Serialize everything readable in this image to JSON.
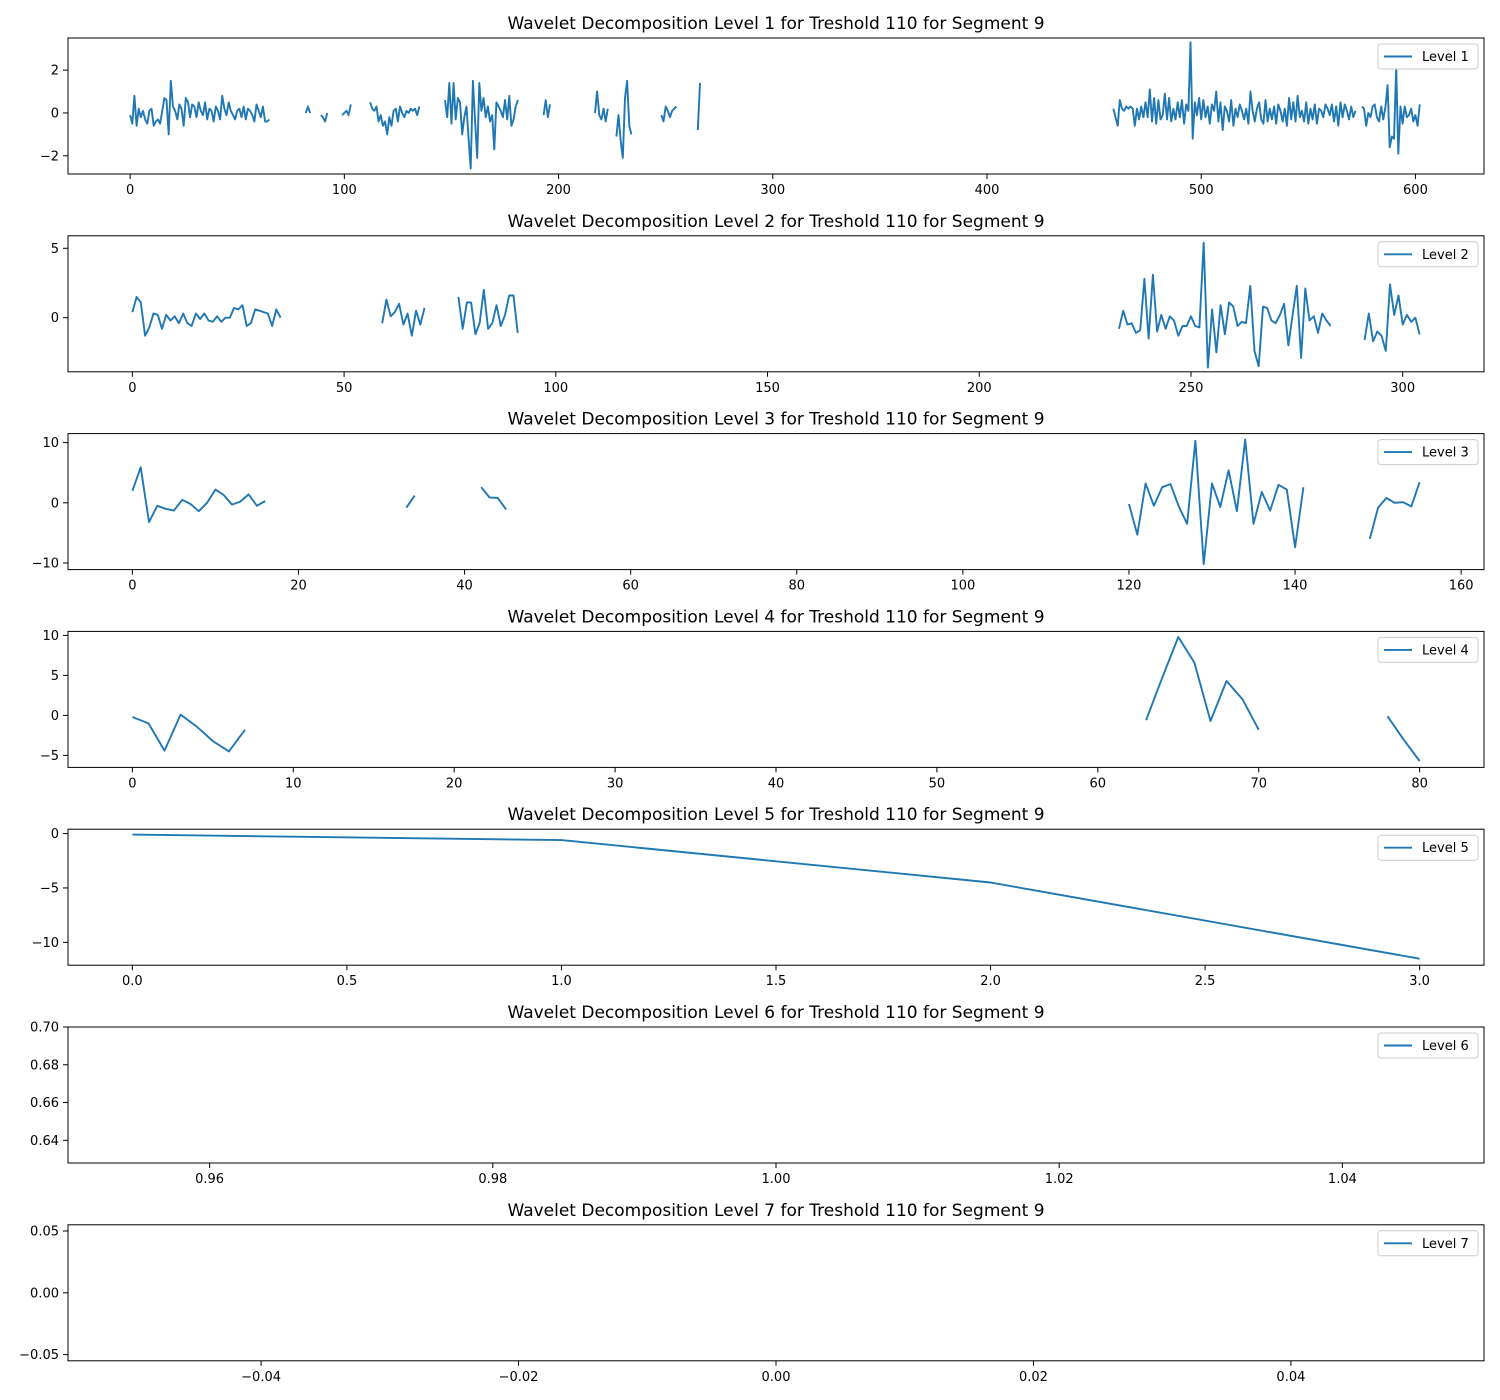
{
  "colors": {
    "line": "#1f77b4",
    "axis": "#000000",
    "legend_border": "#cccccc"
  },
  "chart_data": [
    {
      "type": "line",
      "title": "Wavelet Decomposition Level 1 for Treshold 110 for Segment 9",
      "xlabel": "",
      "ylabel": "",
      "xlim": [
        -29,
        632
      ],
      "ylim": [
        -2.85,
        3.5
      ],
      "xticks": [
        0,
        100,
        200,
        300,
        400,
        500,
        600
      ],
      "xtick_labels": [
        "0",
        "100",
        "200",
        "300",
        "400",
        "500",
        "600"
      ],
      "yticks": [
        -2,
        0,
        2
      ],
      "ytick_labels": [
        "−2",
        "0",
        "2"
      ],
      "legend": "top-right",
      "series": [
        {
          "name": "Level 1",
          "segments": [
            {
              "x0": 0,
              "y": [
                -0.1,
                -0.5,
                0.8,
                -0.6,
                0.2,
                -0.2,
                0.1,
                -0.3,
                -0.5,
                0.1,
                0.2,
                -0.6,
                -0.4,
                -0.3,
                -0.5,
                0.1,
                0.7,
                0.6,
                -1.0,
                1.5,
                0.3,
                0.1,
                -0.3,
                0.4,
                0.2,
                -0.6,
                0.7,
                0.5,
                -0.2,
                0.4,
                0.3,
                -0.2,
                0.5,
                0.1,
                -0.1,
                0.5,
                -0.3,
                0.2,
                0.1,
                -0.4,
                0.3,
                0.1,
                -0.3,
                0.8,
                0.2,
                -0.1,
                0.5,
                0.1,
                -0.1,
                -0.3,
                0.1,
                0.2,
                -0.2,
                0.3,
                -0.3,
                0.2,
                0.1,
                -0.1,
                -0.4,
                0.4,
                0.1,
                -0.2,
                0.3,
                -0.4,
                -0.4,
                -0.3
              ]
            },
            {
              "x0": 82,
              "y": [
                0.0,
                0.3,
                0.0
              ]
            },
            {
              "x0": 89,
              "y": [
                -0.1,
                -0.2,
                -0.4,
                0.0
              ]
            },
            {
              "x0": 99,
              "y": [
                -0.1,
                0.0,
                0.1,
                -0.1,
                0.4
              ]
            },
            {
              "x0": 112,
              "y": [
                0.5,
                0.2,
                0.1,
                0.3,
                -0.4,
                -0.1,
                -0.6,
                -0.4,
                -1.0,
                -0.2,
                -0.6,
                0.1,
                0.2,
                -0.4,
                0.3,
                0.0,
                -0.2,
                0.1,
                0.0,
                0.2,
                0.1,
                0.2,
                -0.1,
                0.3
              ]
            },
            {
              "x0": 147,
              "y": [
                0.6,
                -0.2,
                1.4,
                -0.5,
                1.4,
                -0.3,
                0.7,
                0.5,
                -1.0,
                -0.2,
                0.3,
                -1.2,
                -2.6,
                1.5,
                -0.3,
                -2.1,
                1.4,
                0.1,
                0.7,
                -0.2,
                0.3,
                -0.4,
                -0.1,
                -1.7,
                0.5,
                0.3,
                0.1,
                -0.2,
                0.6,
                -0.3,
                0.8,
                -0.6,
                -0.3,
                0.3,
                0.6
              ]
            },
            {
              "x0": 193,
              "y": [
                -0.1,
                0.6,
                -0.2,
                0.4
              ]
            },
            {
              "x0": 217,
              "y": [
                0.0,
                1.0,
                -0.1,
                -0.3,
                0.2,
                -0.4,
                0.2
              ]
            },
            {
              "x0": 227,
              "y": [
                -1.1,
                -0.1,
                -1.3,
                -2.1,
                0.7,
                1.5,
                -0.6,
                -1.0
              ]
            },
            {
              "x0": 248,
              "y": [
                -0.1,
                -0.4,
                0.3,
                0.1,
                -0.2,
                0.1,
                0.2,
                0.3
              ]
            },
            {
              "x0": 265,
              "y": [
                -0.8,
                1.4
              ]
            },
            {
              "x0": 459,
              "y": [
                0.2,
                -0.2,
                -0.6,
                0.6,
                0.2,
                0.1,
                0.3,
                0.2,
                0.3,
                0.2,
                -0.6,
                0.2,
                -0.3,
                0.3,
                -0.2,
                0.5,
                -0.2,
                1.1,
                -0.4,
                0.7,
                -0.5,
                0.6,
                -0.3,
                -0.1,
                0.9,
                -0.3,
                0.7,
                -0.4,
                0.2,
                -0.3,
                0.5,
                -0.2,
                0.6,
                -0.5,
                0.4,
                0.1,
                3.3,
                -1.2,
                0.5,
                -0.1,
                0.7,
                -0.3,
                0.6,
                -0.2,
                0.3,
                -0.5,
                0.4,
                0.1,
                1.0,
                -0.4,
                0.5,
                -0.8,
                0.3,
                0.1,
                -0.4,
                0.6,
                -0.6,
                0.2,
                -0.2,
                0.4,
                0.1,
                -0.3,
                0.2,
                -0.5,
                1.0,
                0.1,
                -0.4,
                0.2,
                0.5,
                -0.3,
                -0.5,
                0.6,
                -0.4,
                0.2,
                -0.3,
                0.3,
                -0.5,
                0.4,
                0.1,
                -0.4,
                0.2,
                -0.6,
                0.7,
                -0.3,
                0.5,
                -0.4,
                0.8,
                -0.2,
                0.1,
                -0.4,
                0.5,
                -0.5,
                0.2,
                -0.3,
                0.4,
                -0.5,
                0.2,
                0.1,
                -0.2,
                0.4,
                0.2,
                -0.1,
                0.4,
                -0.4,
                0.3,
                -0.6,
                0.5,
                -0.2,
                0.4,
                0.1,
                -0.3,
                0.3,
                -0.2,
                0.1
              ]
            },
            {
              "x0": 575,
              "y": [
                0.3,
                0.2,
                -0.6,
                0.0,
                -0.2,
                0.3,
                0.4,
                -0.2,
                -0.4,
                0.3,
                -0.3,
                0.3,
                1.3,
                -1.6,
                -1.1,
                -1.2,
                2.1,
                -1.9,
                0.3,
                -0.5,
                0.3,
                -0.2,
                -0.1,
                0.2,
                -0.4,
                -0.1,
                -0.6,
                0.4
              ]
            }
          ]
        }
      ]
    },
    {
      "type": "line",
      "title": "Wavelet Decomposition Level 2 for Treshold 110 for Segment 9",
      "xlabel": "",
      "ylabel": "",
      "xlim": [
        -15.2,
        319.2
      ],
      "ylim": [
        -3.9,
        5.9
      ],
      "xticks": [
        0,
        50,
        100,
        150,
        200,
        250,
        300
      ],
      "xtick_labels": [
        "0",
        "50",
        "100",
        "150",
        "200",
        "250",
        "300"
      ],
      "yticks": [
        0,
        5
      ],
      "ytick_labels": [
        "0",
        "5"
      ],
      "legend": "top-right",
      "series": [
        {
          "name": "Level 2",
          "segments": [
            {
              "x0": 0,
              "y": [
                0.4,
                1.5,
                1.1,
                -1.3,
                -0.7,
                0.3,
                0.2,
                -0.8,
                0.2,
                -0.2,
                0.1,
                -0.4,
                0.3,
                -0.4,
                -0.6,
                0.3,
                -0.1,
                0.3,
                -0.2,
                -0.3,
                0.1,
                -0.3,
                0.0,
                0.0,
                0.7,
                0.6,
                0.9,
                -0.6,
                -0.4,
                0.6,
                0.5,
                0.4,
                0.3,
                -0.6,
                0.6,
                0.0
              ]
            },
            {
              "x0": 59,
              "y": [
                -0.4,
                1.3,
                0.1,
                0.4,
                1.0,
                -0.5,
                0.3,
                -1.3,
                0.5,
                -0.5,
                0.7
              ]
            },
            {
              "x0": 77,
              "y": [
                1.5,
                -0.8,
                1.1,
                1.1,
                -1.2,
                -0.4,
                2.0,
                -0.8,
                -0.4,
                0.9,
                -0.6,
                0.2,
                1.6,
                1.6,
                -1.1
              ]
            },
            {
              "x0": 233,
              "y": [
                -0.8,
                0.5,
                -0.5,
                -0.4,
                -1.1,
                -0.9,
                2.8,
                -1.5,
                3.1,
                -1.0,
                0.2,
                -0.8,
                0.1,
                -0.2,
                -1.3,
                -0.6,
                -0.6,
                0.1,
                -0.6,
                -0.7,
                5.4,
                -3.6,
                0.6,
                -2.5,
                0.9,
                -1.2,
                1.1,
                0.8,
                -0.6,
                -0.3,
                -0.4,
                2.3,
                -2.4,
                -3.5,
                0.8,
                0.7,
                -0.2,
                -0.4,
                0.2,
                1.0,
                -2.0,
                0.2,
                2.3,
                -2.9,
                2.1,
                -0.2,
                0.1,
                -1.1,
                0.3,
                -0.2,
                -0.6
              ]
            },
            {
              "x0": 291,
              "y": [
                -1.6,
                0.3,
                -1.7,
                -1.0,
                -1.3,
                -2.4,
                2.4,
                0.2,
                1.6,
                -0.5,
                0.2,
                -0.3,
                0.0,
                -1.2
              ]
            }
          ]
        }
      ]
    },
    {
      "type": "line",
      "title": "Wavelet Decomposition Level 3 for Treshold 110 for Segment 9",
      "xlabel": "",
      "ylabel": "",
      "xlim": [
        -7.75,
        162.75
      ],
      "ylim": [
        -11.1,
        11.5
      ],
      "xticks": [
        0,
        20,
        40,
        60,
        80,
        100,
        120,
        140,
        160
      ],
      "xtick_labels": [
        "0",
        "20",
        "40",
        "60",
        "80",
        "100",
        "120",
        "140",
        "160"
      ],
      "yticks": [
        -10,
        0,
        10
      ],
      "ytick_labels": [
        "−10",
        "0",
        "10"
      ],
      "legend": "top-right",
      "series": [
        {
          "name": "Level 3",
          "segments": [
            {
              "x0": 0,
              "y": [
                2.0,
                5.9,
                -3.2,
                -0.5,
                -1.0,
                -1.3,
                0.5,
                -0.2,
                -1.4,
                0.0,
                2.2,
                1.3,
                -0.3,
                0.2,
                1.4,
                -0.5,
                0.3
              ]
            },
            {
              "x0": 33,
              "y": [
                -0.8,
                1.2
              ]
            },
            {
              "x0": 42,
              "y": [
                2.6,
                0.9,
                0.8,
                -1.1
              ]
            },
            {
              "x0": 120,
              "y": [
                -0.2,
                -5.3,
                3.2,
                -0.5,
                2.6,
                3.1,
                -0.6,
                -3.5,
                10.3,
                -10.2,
                3.2,
                -0.7,
                5.4,
                -1.4,
                10.5,
                -3.5,
                1.8,
                -1.3,
                3.0,
                2.2,
                -7.4,
                2.6
              ]
            },
            {
              "x0": 149,
              "y": [
                -6.0,
                -0.8,
                0.8,
                0.0,
                0.1,
                -0.6,
                3.4
              ]
            }
          ]
        }
      ]
    },
    {
      "type": "line",
      "title": "Wavelet Decomposition Level 4 for Treshold 110 for Segment 9",
      "xlabel": "",
      "ylabel": "",
      "xlim": [
        -4,
        84
      ],
      "ylim": [
        -6.5,
        10.5
      ],
      "xticks": [
        0,
        10,
        20,
        30,
        40,
        50,
        60,
        70,
        80
      ],
      "xtick_labels": [
        "0",
        "10",
        "20",
        "30",
        "40",
        "50",
        "60",
        "70",
        "80"
      ],
      "yticks": [
        -5,
        0,
        5,
        10
      ],
      "ytick_labels": [
        "−5",
        "0",
        "5",
        "10"
      ],
      "legend": "top-right",
      "series": [
        {
          "name": "Level 4",
          "segments": [
            {
              "x0": 0,
              "y": [
                -0.2,
                -1.0,
                -4.4,
                0.1,
                -1.4,
                -3.2,
                -4.5,
                -1.8
              ]
            },
            {
              "x0": 63,
              "y": [
                -0.6,
                4.7,
                9.8,
                6.6,
                -0.7,
                4.3,
                2.0,
                -1.8
              ]
            },
            {
              "x0": 78,
              "y": [
                -0.1,
                -3.0,
                -5.7
              ]
            }
          ]
        }
      ]
    },
    {
      "type": "line",
      "title": "Wavelet Decomposition Level 5 for Treshold 110 for Segment 9",
      "xlabel": "",
      "ylabel": "",
      "xlim": [
        -0.15,
        3.15
      ],
      "ylim": [
        -12.1,
        0.4
      ],
      "xticks": [
        0,
        0.5,
        1,
        1.5,
        2,
        2.5,
        3
      ],
      "xtick_labels": [
        "0.0",
        "0.5",
        "1.0",
        "1.5",
        "2.0",
        "2.5",
        "3.0"
      ],
      "yticks": [
        -10,
        -5,
        0
      ],
      "ytick_labels": [
        "−10",
        "−5",
        "0"
      ],
      "legend": "top-right",
      "series": [
        {
          "name": "Level 5",
          "segments": [
            {
              "x0": 0,
              "y": [
                -0.1,
                -0.6,
                -4.5,
                -11.5
              ]
            }
          ]
        }
      ]
    },
    {
      "type": "line",
      "title": "Wavelet Decomposition Level 6 for Treshold 110 for Segment 9",
      "xlabel": "",
      "ylabel": "",
      "xlim": [
        0.95,
        1.05
      ],
      "ylim": [
        0.628,
        0.7
      ],
      "xticks": [
        0.96,
        0.98,
        1.0,
        1.02,
        1.04
      ],
      "xtick_labels": [
        "0.96",
        "0.98",
        "1.00",
        "1.02",
        "1.04"
      ],
      "yticks": [
        0.64,
        0.66,
        0.68,
        0.7
      ],
      "ytick_labels": [
        "0.64",
        "0.66",
        "0.68",
        "0.70"
      ],
      "legend": "top-right",
      "series": [
        {
          "name": "Level 6",
          "segments": []
        }
      ]
    },
    {
      "type": "line",
      "title": "Wavelet Decomposition Level 7 for Treshold 110 for Segment 9",
      "xlabel": "",
      "ylabel": "",
      "xlim": [
        -0.055,
        0.055
      ],
      "ylim": [
        -0.055,
        0.055
      ],
      "xticks": [
        -0.04,
        -0.02,
        0.0,
        0.02,
        0.04
      ],
      "xtick_labels": [
        "−0.04",
        "−0.02",
        "0.00",
        "0.02",
        "0.04"
      ],
      "yticks": [
        -0.05,
        0.0,
        0.05
      ],
      "ytick_labels": [
        "−0.05",
        "0.00",
        "0.05"
      ],
      "legend": "top-right",
      "series": [
        {
          "name": "Level 7",
          "segments": []
        }
      ]
    }
  ]
}
